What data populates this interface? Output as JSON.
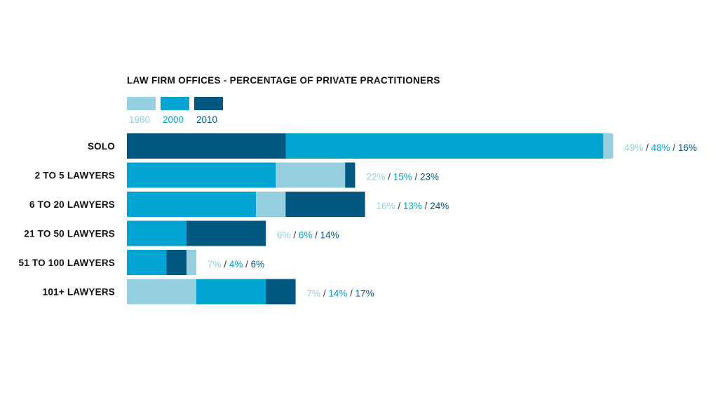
{
  "chart_data": {
    "type": "bar",
    "title": "LAW FIRM OFFICES - PERCENTAGE OF PRIVATE PRACTITIONERS",
    "categories": [
      "SOLO",
      "2 TO 5 LAWYERS",
      "6 TO 20 LAWYERS",
      "21 TO 50 LAWYERS",
      "51 TO 100 LAWYERS",
      "101+ LAWYERS"
    ],
    "series": [
      {
        "name": "1980",
        "color": "#96cfe0",
        "values": [
          49,
          22,
          16,
          6,
          7,
          7
        ]
      },
      {
        "name": "2000",
        "color": "#00a3d1",
        "values": [
          48,
          15,
          13,
          6,
          4,
          14
        ]
      },
      {
        "name": "2010",
        "color": "#00577f",
        "values": [
          16,
          23,
          24,
          14,
          6,
          17
        ]
      }
    ],
    "value_labels": [
      [
        "49%",
        "48%",
        "16%"
      ],
      [
        "22%",
        "15%",
        "23%"
      ],
      [
        "16%",
        "13%",
        "24%"
      ],
      [
        "6%",
        "6%",
        "14%"
      ],
      [
        "7%",
        "4%",
        "6%"
      ],
      [
        "7%",
        "14%",
        "17%"
      ]
    ],
    "separator": "/",
    "xlim": [
      0,
      50
    ],
    "grid": false,
    "legend_position": "top-left"
  }
}
